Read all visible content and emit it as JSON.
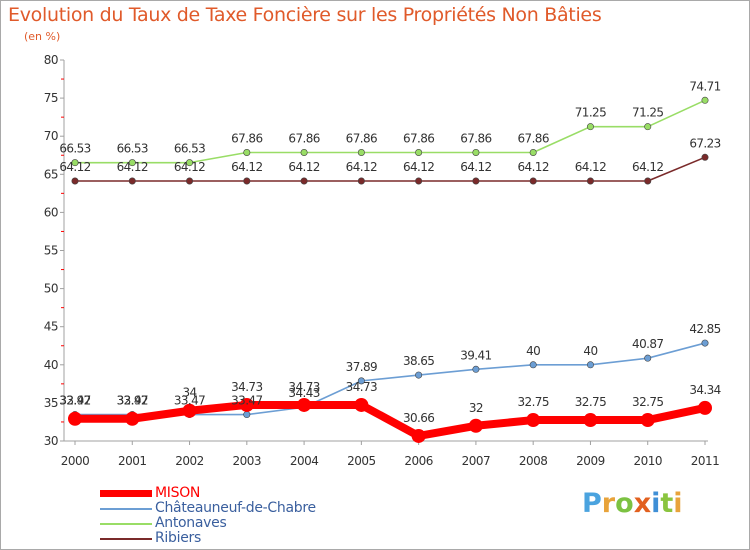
{
  "title": "Evolution du Taux de Taxe Foncière sur les Propriétés Non Bâties",
  "subtitle": "(en %)",
  "logo": {
    "letters": [
      "P",
      "r",
      "o",
      "x",
      "i",
      "t",
      "i"
    ],
    "colors": [
      "#4aa3df",
      "#e8a33a",
      "#7cc242",
      "#e2601f",
      "#3f8fd6",
      "#8ac43f",
      "#e8a33a"
    ]
  },
  "chart_data": {
    "type": "line",
    "x": [
      "2000",
      "2001",
      "2002",
      "2003",
      "2004",
      "2005",
      "2006",
      "2007",
      "2008",
      "2009",
      "2010",
      "2011"
    ],
    "ylim": [
      30,
      80
    ],
    "yticks": [
      "30",
      "35",
      "40",
      "45",
      "50",
      "55",
      "60",
      "65",
      "70",
      "75",
      "80"
    ],
    "grid": false,
    "legend_position": "bottom-left",
    "series": [
      {
        "name": "MISON",
        "color": "#ff0000",
        "values": [
          32.92,
          32.92,
          33.97,
          34.73,
          34.73,
          34.73,
          30.66,
          32,
          32.75,
          32.75,
          32.75,
          34.34
        ],
        "labels": [
          "32.92",
          "32.92",
          "34",
          "34.73",
          "34.73",
          "34.73",
          "30.66",
          "32",
          "32.75",
          "32.75",
          "32.75",
          "34.34"
        ]
      },
      {
        "name": "Châteauneuf-de-Chabre",
        "color": "#6c9ed4",
        "values": [
          33.47,
          33.47,
          33.47,
          33.47,
          34.43,
          37.89,
          38.65,
          39.41,
          40,
          40,
          40.87,
          42.85
        ],
        "labels": [
          "33.47",
          "33.47",
          "33.47",
          "33.47",
          "34.43",
          "37.89",
          "38.65",
          "39.41",
          "40",
          "40",
          "40.87",
          "42.85"
        ]
      },
      {
        "name": "Antonaves",
        "color": "#99dd66",
        "values": [
          66.53,
          66.53,
          66.53,
          67.86,
          67.86,
          67.86,
          67.86,
          67.86,
          67.86,
          71.25,
          71.25,
          74.71
        ],
        "labels": [
          "66.53",
          "66.53",
          "66.53",
          "67.86",
          "67.86",
          "67.86",
          "67.86",
          "67.86",
          "67.86",
          "71.25",
          "71.25",
          "74.71"
        ]
      },
      {
        "name": "Ribiers",
        "color": "#7a2a2a",
        "values": [
          64.12,
          64.12,
          64.12,
          64.12,
          64.12,
          64.12,
          64.12,
          64.12,
          64.12,
          64.12,
          64.12,
          67.23
        ],
        "labels": [
          "64.12",
          "64.12",
          "64.12",
          "64.12",
          "64.12",
          "64.12",
          "64.12",
          "64.12",
          "64.12",
          "64.12",
          "64.12",
          "67.23"
        ]
      }
    ]
  }
}
